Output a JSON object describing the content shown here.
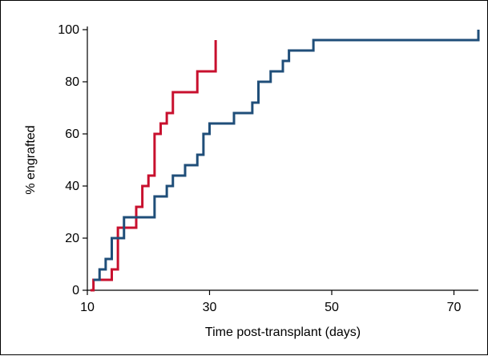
{
  "chart_data": {
    "type": "line",
    "step": true,
    "title": "",
    "xlabel": "Time post-transplant (days)",
    "ylabel": "% engrafted",
    "xlim": [
      10,
      74
    ],
    "ylim": [
      0,
      100
    ],
    "xticks": [
      10,
      30,
      50,
      70
    ],
    "yticks": [
      0,
      20,
      40,
      60,
      80,
      100
    ],
    "grid": false,
    "series": [
      {
        "color": "#c8102e",
        "x": [
          10.5,
          11,
          14,
          15,
          18,
          19,
          20,
          21,
          22,
          23,
          24,
          28,
          31
        ],
        "y": [
          0,
          4,
          8,
          24,
          32,
          40,
          44,
          60,
          64,
          68,
          76,
          84,
          96
        ]
      },
      {
        "color": "#1f4e79",
        "x": [
          11,
          12,
          13,
          14,
          16,
          21,
          23,
          24,
          26,
          28,
          29,
          30,
          34,
          37,
          38,
          40,
          42,
          43,
          47,
          74
        ],
        "y": [
          4,
          8,
          12,
          20,
          28,
          36,
          40,
          44,
          48,
          52,
          60,
          64,
          68,
          72,
          80,
          84,
          88,
          92,
          96,
          100
        ]
      }
    ]
  }
}
